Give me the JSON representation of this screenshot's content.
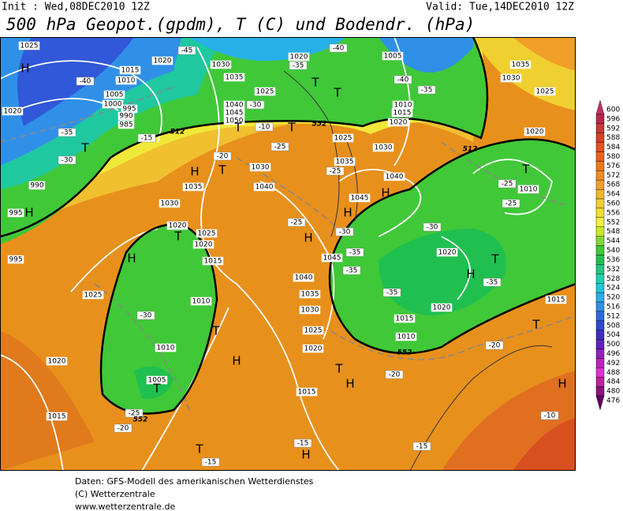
{
  "header": {
    "init": "Init : Wed,08DEC2010 12Z",
    "valid": "Valid: Tue,14DEC2010 12Z",
    "title": "500 hPa Geopot.(gpdm), T (C) und Bodendr. (hPa)"
  },
  "map": {
    "highs_lows": [
      "H",
      "T",
      "T",
      "T",
      "T",
      "T",
      "H",
      "T",
      "H",
      "H",
      "T",
      "H",
      "H",
      "H",
      "T",
      "H",
      "T",
      "H",
      "T",
      "H",
      "H",
      "T",
      "T",
      "H",
      "T",
      "T"
    ],
    "isobar_labels": [
      "1025",
      "1020",
      "1015",
      "1010",
      "1005",
      "1000",
      "995",
      "990",
      "985",
      "1020",
      "1035",
      "1030",
      "1040",
      "1045",
      "1050",
      "1025",
      "1020",
      "1005",
      "1035",
      "1030",
      "1025",
      "1010",
      "1015",
      "1020",
      "1025",
      "1030",
      "1035",
      "1040",
      "1045",
      "1035",
      "1040",
      "1030",
      "1020",
      "1025",
      "1020",
      "1015",
      "1010",
      "1025",
      "1020",
      "1010",
      "1020",
      "1020",
      "1015",
      "1010",
      "1015",
      "1045",
      "1040",
      "1035",
      "1030",
      "1025",
      "1020",
      "1015",
      "1010",
      "1005",
      "1020",
      "1015",
      "995",
      "990",
      "995",
      "1030"
    ],
    "temperature_labels": [
      "-45",
      "-40",
      "-35",
      "-40",
      "-35",
      "-30",
      "-30",
      "-25",
      "-30",
      "-35",
      "-35",
      "-30",
      "-25",
      "-25",
      "-35",
      "-25",
      "-20",
      "-20",
      "-20",
      "-15",
      "-15",
      "-15",
      "-10",
      "-25",
      "-15",
      "-20",
      "-25",
      "-10",
      "-30",
      "-35",
      "-40",
      "-35"
    ],
    "contour_labels": [
      "552",
      "512",
      "512",
      "552",
      "552"
    ]
  },
  "colorbar": {
    "labels": [
      600,
      596,
      592,
      588,
      584,
      580,
      576,
      572,
      568,
      564,
      560,
      556,
      552,
      548,
      544,
      540,
      536,
      532,
      528,
      524,
      520,
      516,
      512,
      508,
      504,
      500,
      496,
      492,
      488,
      484,
      480,
      476
    ],
    "colors": [
      "#c03060",
      "#b82848",
      "#c83838",
      "#d84028",
      "#e85020",
      "#f06018",
      "#f07818",
      "#f08c20",
      "#f0a028",
      "#f0b828",
      "#f0d030",
      "#f0e030",
      "#f0f040",
      "#c8e828",
      "#80d830",
      "#40c838",
      "#20c050",
      "#20c880",
      "#20d0b0",
      "#20c8d8",
      "#28b0e8",
      "#3090e8",
      "#3068e0",
      "#3048d0",
      "#4030c0",
      "#6020c0",
      "#9020c0",
      "#c020c0",
      "#e030d0",
      "#c020a0",
      "#901080",
      "#600060"
    ]
  },
  "footer": {
    "lines": [
      "Daten: GFS-Modell des amerikanischen Wetterdienstes",
      "(C) Wetterzentrale",
      "www.wetterzentrale.de"
    ]
  }
}
